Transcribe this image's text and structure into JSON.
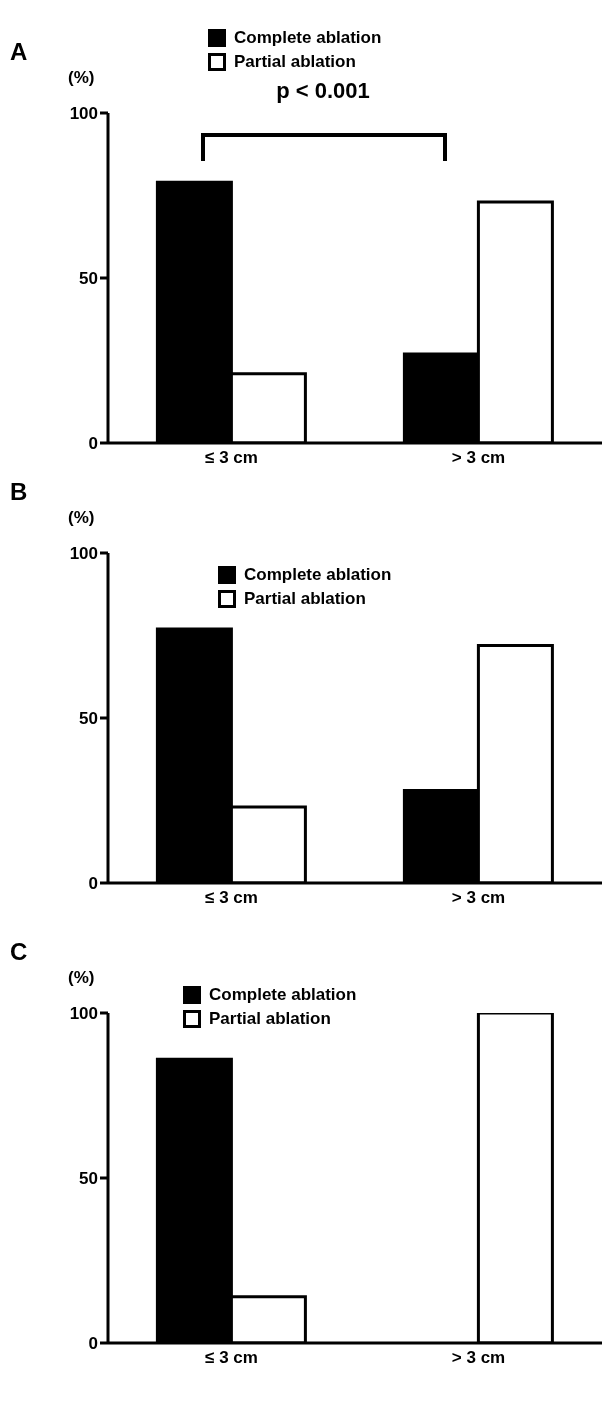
{
  "chart_data": [
    {
      "type": "bar",
      "title": "A",
      "ylabel": "(%)",
      "categories": [
        "≤ 3 cm",
        "> 3 cm"
      ],
      "series": [
        {
          "name": "Complete ablation",
          "color": "#000000",
          "values": [
            79,
            27
          ]
        },
        {
          "name": "Partial ablation",
          "color": "#ffffff",
          "values": [
            21,
            73
          ]
        }
      ],
      "ylim": [
        0,
        100
      ],
      "yticks": [
        0,
        50,
        100
      ],
      "legend": "top",
      "annotations": [
        "p < 0.001"
      ]
    },
    {
      "type": "bar",
      "title": "B",
      "ylabel": "(%)",
      "categories": [
        "≤ 3 cm",
        "> 3 cm"
      ],
      "series": [
        {
          "name": "Complete ablation",
          "color": "#000000",
          "values": [
            77,
            28
          ]
        },
        {
          "name": "Partial ablation",
          "color": "#ffffff",
          "values": [
            23,
            72
          ]
        }
      ],
      "ylim": [
        0,
        100
      ],
      "yticks": [
        0,
        50,
        100
      ],
      "legend": "top"
    },
    {
      "type": "bar",
      "title": "C",
      "ylabel": "(%)",
      "categories": [
        "≤ 3 cm",
        "> 3 cm"
      ],
      "series": [
        {
          "name": "Complete ablation",
          "color": "#000000",
          "values": [
            86,
            0
          ]
        },
        {
          "name": "Partial ablation",
          "color": "#ffffff",
          "values": [
            14,
            100
          ]
        }
      ],
      "ylim": [
        0,
        100
      ],
      "yticks": [
        0,
        50,
        100
      ],
      "legend": "top"
    }
  ]
}
